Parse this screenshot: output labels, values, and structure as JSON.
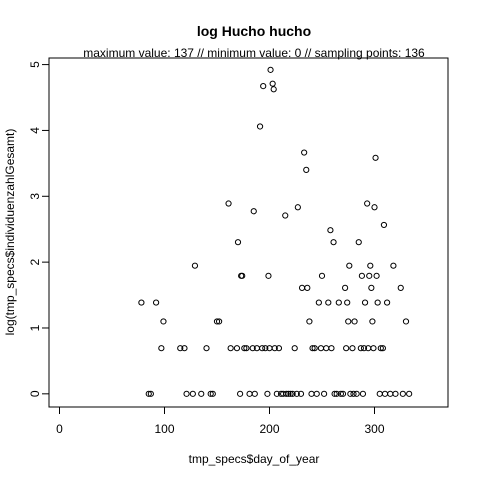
{
  "chart_data": {
    "type": "scatter",
    "title": "log Hucho hucho",
    "subtitle": "maximum value: 137  //  minimum value: 0  // sampling points: 136",
    "xlabel": "tmp_specs$day_of_year",
    "ylabel": "log(tmp_specs$individuenzahlGesamt)",
    "xlim": [
      -10,
      370
    ],
    "ylim": [
      -0.2,
      5.1
    ],
    "xticks": [
      0,
      100,
      200,
      300
    ],
    "yticks": [
      0,
      1,
      2,
      3,
      4,
      5
    ],
    "grid": false,
    "point_style": "open circle",
    "points": [
      [
        78,
        1.386
      ],
      [
        85,
        0
      ],
      [
        87,
        0
      ],
      [
        92,
        1.386
      ],
      [
        97,
        0.693
      ],
      [
        99,
        1.099
      ],
      [
        115,
        0.693
      ],
      [
        119,
        0.693
      ],
      [
        121,
        0
      ],
      [
        127,
        0
      ],
      [
        129,
        1.946
      ],
      [
        135,
        0
      ],
      [
        140,
        0.693
      ],
      [
        144,
        0
      ],
      [
        146,
        0
      ],
      [
        150,
        1.099
      ],
      [
        152,
        1.099
      ],
      [
        161,
        2.89
      ],
      [
        163,
        0.693
      ],
      [
        169,
        0.693
      ],
      [
        170,
        2.303
      ],
      [
        172,
        0
      ],
      [
        173,
        1.792
      ],
      [
        174,
        1.792
      ],
      [
        176,
        0.693
      ],
      [
        178,
        0.693
      ],
      [
        181,
        0
      ],
      [
        184,
        0.693
      ],
      [
        185,
        2.773
      ],
      [
        186,
        0
      ],
      [
        188,
        0.693
      ],
      [
        191,
        4.06
      ],
      [
        193,
        0.693
      ],
      [
        194,
        4.673
      ],
      [
        196,
        0.693
      ],
      [
        198,
        0
      ],
      [
        199,
        1.792
      ],
      [
        200,
        0.693
      ],
      [
        201,
        4.92
      ],
      [
        203,
        4.71
      ],
      [
        204,
        4.625
      ],
      [
        205,
        0.693
      ],
      [
        207,
        0
      ],
      [
        209,
        0.693
      ],
      [
        211,
        0
      ],
      [
        213,
        0
      ],
      [
        215,
        2.708
      ],
      [
        216,
        0
      ],
      [
        218,
        0
      ],
      [
        220,
        0
      ],
      [
        222,
        0
      ],
      [
        224,
        0.693
      ],
      [
        226,
        0
      ],
      [
        227,
        2.833
      ],
      [
        230,
        0
      ],
      [
        231,
        1.609
      ],
      [
        233,
        3.664
      ],
      [
        235,
        3.401
      ],
      [
        236,
        1.609
      ],
      [
        238,
        1.099
      ],
      [
        240,
        0
      ],
      [
        241,
        0.693
      ],
      [
        243,
        0.693
      ],
      [
        245,
        0
      ],
      [
        247,
        1.386
      ],
      [
        249,
        0.693
      ],
      [
        250,
        1.792
      ],
      [
        252,
        0
      ],
      [
        254,
        0.693
      ],
      [
        256,
        1.386
      ],
      [
        258,
        2.485
      ],
      [
        259,
        0.693
      ],
      [
        261,
        2.303
      ],
      [
        262,
        0
      ],
      [
        264,
        0
      ],
      [
        266,
        1.386
      ],
      [
        268,
        0
      ],
      [
        270,
        0
      ],
      [
        272,
        1.609
      ],
      [
        273,
        0.693
      ],
      [
        274,
        1.386
      ],
      [
        275,
        1.099
      ],
      [
        276,
        1.946
      ],
      [
        277,
        0
      ],
      [
        279,
        0.693
      ],
      [
        280,
        0
      ],
      [
        281,
        1.099
      ],
      [
        283,
        0
      ],
      [
        285,
        2.303
      ],
      [
        287,
        0.693
      ],
      [
        288,
        1.792
      ],
      [
        289,
        0
      ],
      [
        290,
        0.693
      ],
      [
        291,
        1.386
      ],
      [
        293,
        2.89
      ],
      [
        294,
        0.693
      ],
      [
        295,
        1.792
      ],
      [
        296,
        1.946
      ],
      [
        297,
        1.609
      ],
      [
        298,
        1.099
      ],
      [
        299,
        0.693
      ],
      [
        300,
        2.833
      ],
      [
        301,
        3.584
      ],
      [
        302,
        1.792
      ],
      [
        303,
        1.386
      ],
      [
        305,
        0
      ],
      [
        306,
        0.693
      ],
      [
        308,
        0.693
      ],
      [
        309,
        2.565
      ],
      [
        310,
        0
      ],
      [
        312,
        1.386
      ],
      [
        315,
        0
      ],
      [
        318,
        1.946
      ],
      [
        320,
        0
      ],
      [
        325,
        1.609
      ],
      [
        327,
        0
      ],
      [
        330,
        1.099
      ],
      [
        333,
        0
      ]
    ]
  }
}
